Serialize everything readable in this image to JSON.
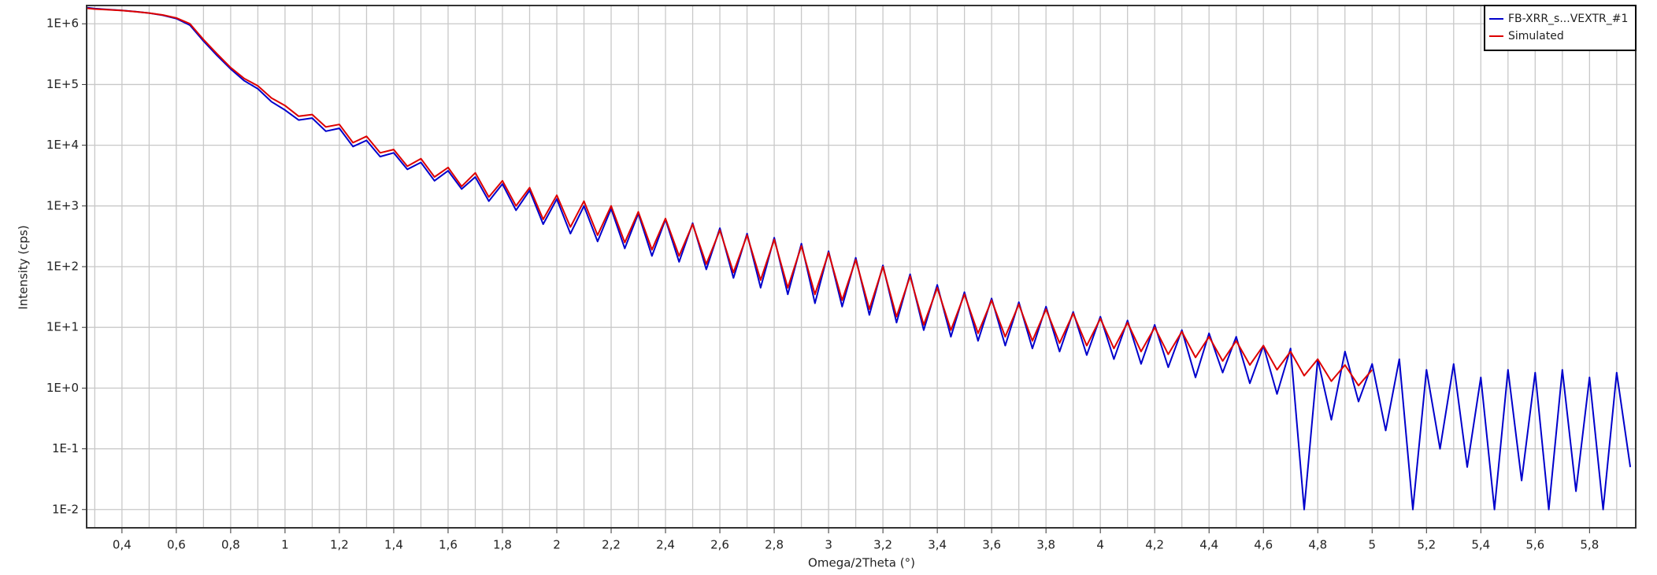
{
  "chart_data": {
    "type": "line",
    "x_label": "Omega/2Theta (°)",
    "y_label": "Intensity (cps)",
    "xlim": [
      0.27,
      5.97
    ],
    "ylim": [
      0.005,
      2000000
    ],
    "y_log": true,
    "grid": true,
    "legend": "upper right",
    "xticks": [
      {
        "value": 0.4,
        "label": "0,4"
      },
      {
        "value": 0.6,
        "label": "0,6"
      },
      {
        "value": 0.8,
        "label": "0,8"
      },
      1,
      {
        "value": 1.2,
        "label": "1,2"
      },
      {
        "value": 1.4,
        "label": "1,4"
      },
      {
        "value": 1.6,
        "label": "1,6"
      },
      {
        "value": 1.8,
        "label": "1,8"
      },
      2,
      {
        "value": 2.2,
        "label": "2,2"
      },
      {
        "value": 2.4,
        "label": "2,4"
      },
      {
        "value": 2.6,
        "label": "2,6"
      },
      {
        "value": 2.8,
        "label": "2,8"
      },
      3,
      {
        "value": 3.2,
        "label": "3,2"
      },
      {
        "value": 3.4,
        "label": "3,4"
      },
      {
        "value": 3.6,
        "label": "3,6"
      },
      {
        "value": 3.8,
        "label": "3,8"
      },
      4,
      {
        "value": 4.2,
        "label": "4,2"
      },
      {
        "value": 4.4,
        "label": "4,4"
      },
      {
        "value": 4.6,
        "label": "4,6"
      },
      {
        "value": 4.8,
        "label": "4,8"
      },
      5,
      {
        "value": 5.2,
        "label": "5,2"
      },
      {
        "value": 5.4,
        "label": "5,4"
      },
      {
        "value": 5.6,
        "label": "5,6"
      },
      {
        "value": 5.8,
        "label": "5,8"
      }
    ],
    "x_minor_ticks": [
      0.3,
      0.5,
      0.7,
      0.9,
      1.1,
      1.3,
      1.5,
      1.7,
      1.9,
      2.1,
      2.3,
      2.5,
      2.7,
      2.9,
      3.1,
      3.3,
      3.5,
      3.7,
      3.9,
      4.1,
      4.3,
      4.5,
      4.7,
      4.9,
      5.1,
      5.3,
      5.5,
      5.7,
      5.9
    ],
    "yticks": [
      {
        "value": 0.01,
        "label": "1E-2"
      },
      {
        "value": 0.1,
        "label": "1E-1"
      },
      {
        "value": 1,
        "label": "1E+0"
      },
      {
        "value": 10,
        "label": "1E+1"
      },
      {
        "value": 100,
        "label": "1E+2"
      },
      {
        "value": 1000,
        "label": "1E+3"
      },
      {
        "value": 10000,
        "label": "1E+4"
      },
      {
        "value": 100000,
        "label": "1E+5"
      },
      {
        "value": 1000000,
        "label": "1E+6"
      }
    ],
    "series": [
      {
        "name": "FB-XRR_s...VEXTR_#1",
        "color": "#0000cc",
        "x": [
          0.27,
          0.3,
          0.35,
          0.4,
          0.45,
          0.5,
          0.55,
          0.6,
          0.65,
          0.7,
          0.75,
          0.8,
          0.85,
          0.9,
          0.95,
          1.0,
          1.05,
          1.1,
          1.15,
          1.2,
          1.25,
          1.3,
          1.35,
          1.4,
          1.45,
          1.5,
          1.55,
          1.6,
          1.65,
          1.7,
          1.75,
          1.8,
          1.85,
          1.9,
          1.95,
          2.0,
          2.05,
          2.1,
          2.15,
          2.2,
          2.25,
          2.3,
          2.35,
          2.4,
          2.45,
          2.5,
          2.55,
          2.6,
          2.65,
          2.7,
          2.75,
          2.8,
          2.85,
          2.9,
          2.95,
          3.0,
          3.05,
          3.1,
          3.15,
          3.2,
          3.25,
          3.3,
          3.35,
          3.4,
          3.45,
          3.5,
          3.55,
          3.6,
          3.65,
          3.7,
          3.75,
          3.8,
          3.85,
          3.9,
          3.95,
          4.0,
          4.05,
          4.1,
          4.15,
          4.2,
          4.25,
          4.3,
          4.35,
          4.4,
          4.45,
          4.5,
          4.55,
          4.6,
          4.65,
          4.7,
          4.75,
          4.8,
          4.85,
          4.9,
          4.95,
          5.0,
          5.05,
          5.1,
          5.15,
          5.2,
          5.25,
          5.3,
          5.35,
          5.4,
          5.45,
          5.5,
          5.55,
          5.6,
          5.65,
          5.7,
          5.75,
          5.8,
          5.85,
          5.9,
          5.95
        ],
        "values": [
          1850000,
          1780000,
          1720000,
          1660000,
          1590000,
          1500000,
          1380000,
          1220000,
          950000,
          520000,
          300000,
          180000,
          115000,
          85000,
          52000,
          38000,
          26000,
          28000,
          17000,
          19000,
          9500,
          12000,
          6500,
          7500,
          4000,
          5200,
          2600,
          3800,
          1900,
          3000,
          1200,
          2300,
          850,
          1800,
          500,
          1300,
          350,
          1000,
          260,
          900,
          200,
          750,
          150,
          600,
          120,
          520,
          90,
          430,
          65,
          350,
          45,
          300,
          35,
          240,
          25,
          180,
          22,
          140,
          16,
          105,
          12,
          75,
          9,
          50,
          7,
          38,
          6,
          30,
          5,
          26,
          4.5,
          22,
          4,
          18,
          3.5,
          15,
          3,
          13,
          2.5,
          11,
          2.2,
          9,
          1.5,
          8,
          1.8,
          7,
          1.2,
          5,
          0.8,
          4.5,
          0.01,
          3,
          0.3,
          4,
          0.6,
          2.5,
          0.2,
          3,
          0.01,
          2,
          0.1,
          2.5,
          0.05,
          1.5,
          0.01,
          2,
          0.03,
          1.8,
          0.01,
          2,
          0.02,
          1.5,
          0.01,
          1.8,
          0.05
        ]
      },
      {
        "name": "Simulated",
        "color": "#dd0000",
        "x": [
          0.27,
          0.3,
          0.35,
          0.4,
          0.45,
          0.5,
          0.55,
          0.6,
          0.65,
          0.7,
          0.75,
          0.8,
          0.85,
          0.9,
          0.95,
          1.0,
          1.05,
          1.1,
          1.15,
          1.2,
          1.25,
          1.3,
          1.35,
          1.4,
          1.45,
          1.5,
          1.55,
          1.6,
          1.65,
          1.7,
          1.75,
          1.8,
          1.85,
          1.9,
          1.95,
          2.0,
          2.05,
          2.1,
          2.15,
          2.2,
          2.25,
          2.3,
          2.35,
          2.4,
          2.45,
          2.5,
          2.55,
          2.6,
          2.65,
          2.7,
          2.75,
          2.8,
          2.85,
          2.9,
          2.95,
          3.0,
          3.05,
          3.1,
          3.15,
          3.2,
          3.25,
          3.3,
          3.35,
          3.4,
          3.45,
          3.5,
          3.55,
          3.6,
          3.65,
          3.7,
          3.75,
          3.8,
          3.85,
          3.9,
          3.95,
          4.0,
          4.05,
          4.1,
          4.15,
          4.2,
          4.25,
          4.3,
          4.35,
          4.4,
          4.45,
          4.5,
          4.55,
          4.6,
          4.65,
          4.7,
          4.75,
          4.8,
          4.85,
          4.9,
          4.95,
          5.0
        ],
        "values": [
          1800000,
          1750000,
          1700000,
          1650000,
          1580000,
          1500000,
          1400000,
          1250000,
          1000000,
          550000,
          320000,
          190000,
          125000,
          95000,
          60000,
          45000,
          30000,
          32000,
          20000,
          22000,
          11000,
          14000,
          7500,
          8500,
          4500,
          6000,
          3000,
          4300,
          2100,
          3500,
          1400,
          2600,
          1000,
          2000,
          600,
          1500,
          450,
          1200,
          330,
          1000,
          250,
          800,
          190,
          620,
          150,
          500,
          110,
          400,
          80,
          330,
          60,
          280,
          45,
          220,
          35,
          170,
          28,
          130,
          20,
          100,
          15,
          70,
          11,
          45,
          9,
          35,
          8,
          28,
          7,
          24,
          6,
          20,
          5.5,
          17,
          5,
          14,
          4.5,
          12,
          4,
          10,
          3.6,
          8.5,
          3.2,
          7,
          2.8,
          6,
          2.4,
          5,
          2,
          4,
          1.6,
          3,
          1.3,
          2.4,
          1.1,
          2
        ]
      }
    ]
  }
}
